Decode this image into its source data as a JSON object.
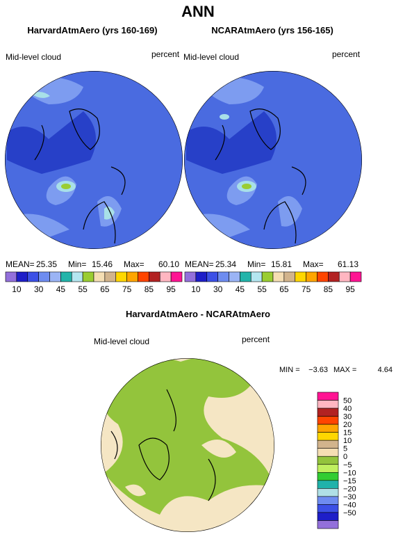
{
  "title": "ANN",
  "panels": [
    {
      "title": "HarvardAtmAero (yrs 160-169)",
      "left_label": "Mid-level cloud",
      "right_label": "percent",
      "stats": [
        "MEAN=",
        "25.35",
        "Min=",
        "15.46",
        "Max=",
        "60.10"
      ]
    },
    {
      "title": "NCARAtmAero (yrs 156-165)",
      "left_label": "Mid-level cloud",
      "right_label": "percent",
      "stats": [
        "MEAN=",
        "25.34",
        "Min=",
        "15.81",
        "Max=",
        "61.13"
      ]
    }
  ],
  "colorbar_top": {
    "labels": [
      "10",
      "30",
      "45",
      "55",
      "65",
      "75",
      "85",
      "95"
    ]
  },
  "difference": {
    "title": "HarvardAtmAero - NCARAtmAero",
    "left_label": "Mid-level cloud",
    "right_label": "percent",
    "stats": [
      "MIN =",
      "−3.63",
      "MAX =",
      "4.64"
    ],
    "colorbar_labels": [
      "50",
      "40",
      "30",
      "20",
      "15",
      "10",
      "5",
      "0",
      "−5",
      "−10",
      "−15",
      "−20",
      "−30",
      "−40",
      "−50"
    ]
  }
}
